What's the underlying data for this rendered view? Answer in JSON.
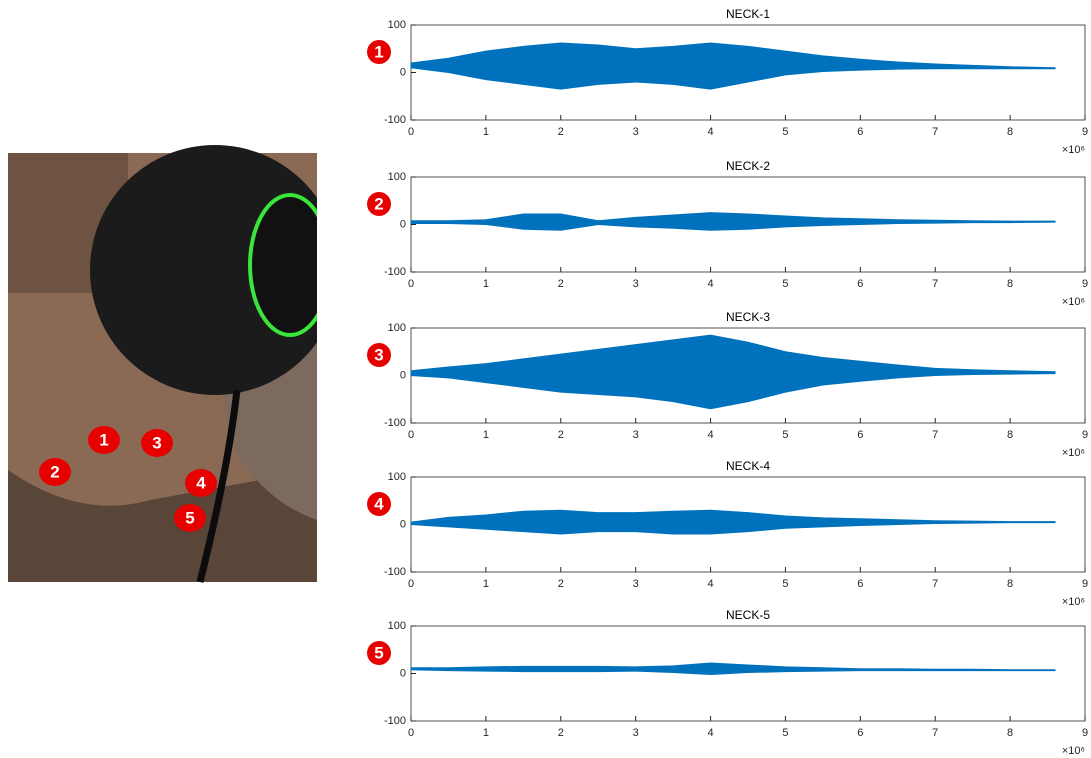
{
  "chart_data": [
    {
      "type": "waveform",
      "title": "NECK-1",
      "marker": "1",
      "color": "#0072bd",
      "x": [
        0,
        500000,
        1000000,
        1500000,
        2000000,
        2500000,
        3000000,
        3500000,
        4000000,
        4500000,
        5000000,
        5500000,
        6000000,
        6500000,
        7000000,
        7500000,
        8000000,
        8600000
      ],
      "upper": [
        20,
        30,
        45,
        55,
        62,
        58,
        50,
        55,
        62,
        55,
        45,
        35,
        28,
        22,
        18,
        15,
        12,
        10
      ],
      "lower": [
        10,
        0,
        -15,
        -25,
        -35,
        -25,
        -20,
        -25,
        -35,
        -20,
        -5,
        2,
        5,
        7,
        8,
        8,
        8,
        8
      ],
      "xlim": [
        0,
        9000000
      ],
      "xticks": [
        0,
        {
          "value": 1000000,
          "label": "1"
        },
        {
          "value": 2000000,
          "label": "2"
        },
        {
          "value": 3000000,
          "label": "3"
        },
        {
          "value": 4000000,
          "label": "4"
        },
        {
          "value": 5000000,
          "label": "5"
        },
        {
          "value": 6000000,
          "label": "6"
        },
        {
          "value": 7000000,
          "label": "7"
        },
        {
          "value": 8000000,
          "label": "8"
        },
        {
          "value": 9000000,
          "label": "9"
        }
      ],
      "x_scale_label": "×10⁶",
      "ylim": [
        -100,
        100
      ],
      "yticks": [
        -100,
        0,
        100
      ]
    },
    {
      "type": "waveform",
      "title": "NECK-2",
      "marker": "2",
      "color": "#0072bd",
      "x": [
        0,
        500000,
        1000000,
        1500000,
        2000000,
        2500000,
        3000000,
        3500000,
        4000000,
        4500000,
        5000000,
        5500000,
        6000000,
        6500000,
        7000000,
        7500000,
        8000000,
        8600000
      ],
      "upper": [
        8,
        8,
        10,
        22,
        22,
        8,
        15,
        20,
        25,
        22,
        18,
        14,
        12,
        10,
        9,
        8,
        7,
        7
      ],
      "lower": [
        2,
        2,
        0,
        -10,
        -12,
        0,
        -5,
        -8,
        -12,
        -10,
        -5,
        -2,
        0,
        2,
        3,
        4,
        4,
        5
      ],
      "xlim": [
        0,
        9000000
      ],
      "xticks": [
        0,
        {
          "value": 1000000,
          "label": "1"
        },
        {
          "value": 2000000,
          "label": "2"
        },
        {
          "value": 3000000,
          "label": "3"
        },
        {
          "value": 4000000,
          "label": "4"
        },
        {
          "value": 5000000,
          "label": "5"
        },
        {
          "value": 6000000,
          "label": "6"
        },
        {
          "value": 7000000,
          "label": "7"
        },
        {
          "value": 8000000,
          "label": "8"
        },
        {
          "value": 9000000,
          "label": "9"
        }
      ],
      "x_scale_label": "×10⁶",
      "ylim": [
        -100,
        100
      ],
      "yticks": [
        -100,
        0,
        100
      ]
    },
    {
      "type": "waveform",
      "title": "NECK-3",
      "marker": "3",
      "color": "#0072bd",
      "x": [
        0,
        500000,
        1000000,
        1500000,
        2000000,
        2500000,
        3000000,
        3500000,
        4000000,
        4500000,
        5000000,
        5500000,
        6000000,
        6500000,
        7000000,
        7500000,
        8000000,
        8600000
      ],
      "upper": [
        10,
        18,
        25,
        35,
        45,
        55,
        65,
        75,
        85,
        70,
        50,
        38,
        30,
        22,
        15,
        12,
        10,
        8
      ],
      "lower": [
        0,
        -5,
        -15,
        -25,
        -35,
        -40,
        -45,
        -55,
        -70,
        -55,
        -35,
        -20,
        -12,
        -5,
        0,
        2,
        3,
        4
      ],
      "xlim": [
        0,
        9000000
      ],
      "xticks": [
        0,
        {
          "value": 1000000,
          "label": "1"
        },
        {
          "value": 2000000,
          "label": "2"
        },
        {
          "value": 3000000,
          "label": "3"
        },
        {
          "value": 4000000,
          "label": "4"
        },
        {
          "value": 5000000,
          "label": "5"
        },
        {
          "value": 6000000,
          "label": "6"
        },
        {
          "value": 7000000,
          "label": "7"
        },
        {
          "value": 8000000,
          "label": "8"
        },
        {
          "value": 9000000,
          "label": "9"
        }
      ],
      "x_scale_label": "×10⁶",
      "ylim": [
        -100,
        100
      ],
      "yticks": [
        -100,
        0,
        100
      ]
    },
    {
      "type": "waveform",
      "title": "NECK-4",
      "marker": "4",
      "color": "#0072bd",
      "x": [
        0,
        500000,
        1000000,
        1500000,
        2000000,
        2500000,
        3000000,
        3500000,
        4000000,
        4500000,
        5000000,
        5500000,
        6000000,
        6500000,
        7000000,
        7500000,
        8000000,
        8600000
      ],
      "upper": [
        5,
        15,
        20,
        28,
        30,
        25,
        25,
        28,
        30,
        25,
        18,
        14,
        12,
        10,
        8,
        7,
        6,
        6
      ],
      "lower": [
        0,
        -5,
        -10,
        -15,
        -20,
        -15,
        -15,
        -20,
        -20,
        -15,
        -8,
        -5,
        -2,
        0,
        2,
        3,
        4,
        4
      ],
      "xlim": [
        0,
        9000000
      ],
      "xticks": [
        0,
        {
          "value": 1000000,
          "label": "1"
        },
        {
          "value": 2000000,
          "label": "2"
        },
        {
          "value": 3000000,
          "label": "3"
        },
        {
          "value": 4000000,
          "label": "4"
        },
        {
          "value": 5000000,
          "label": "5"
        },
        {
          "value": 6000000,
          "label": "6"
        },
        {
          "value": 7000000,
          "label": "7"
        },
        {
          "value": 8000000,
          "label": "8"
        },
        {
          "value": 9000000,
          "label": "9"
        }
      ],
      "x_scale_label": "×10⁶",
      "ylim": [
        -100,
        100
      ],
      "yticks": [
        -100,
        0,
        100
      ]
    },
    {
      "type": "waveform",
      "title": "NECK-5",
      "marker": "5",
      "color": "#0072bd",
      "x": [
        0,
        500000,
        1000000,
        1500000,
        2000000,
        2500000,
        3000000,
        3500000,
        4000000,
        4500000,
        5000000,
        5500000,
        6000000,
        6500000,
        7000000,
        7500000,
        8000000,
        8600000
      ],
      "upper": [
        12,
        12,
        14,
        15,
        15,
        15,
        14,
        16,
        22,
        18,
        14,
        12,
        10,
        10,
        9,
        9,
        8,
        8
      ],
      "lower": [
        8,
        6,
        5,
        4,
        4,
        4,
        5,
        2,
        -2,
        2,
        4,
        5,
        6,
        6,
        6,
        6,
        6,
        6
      ],
      "xlim": [
        0,
        9000000
      ],
      "xticks": [
        0,
        {
          "value": 1000000,
          "label": "1"
        },
        {
          "value": 2000000,
          "label": "2"
        },
        {
          "value": 3000000,
          "label": "3"
        },
        {
          "value": 4000000,
          "label": "4"
        },
        {
          "value": 5000000,
          "label": "5"
        },
        {
          "value": 6000000,
          "label": "6"
        },
        {
          "value": 7000000,
          "label": "7"
        },
        {
          "value": 8000000,
          "label": "8"
        },
        {
          "value": 9000000,
          "label": "9"
        }
      ],
      "x_scale_label": "×10⁶",
      "ylim": [
        -100,
        100
      ],
      "yticks": [
        -100,
        0,
        100
      ]
    }
  ]
}
